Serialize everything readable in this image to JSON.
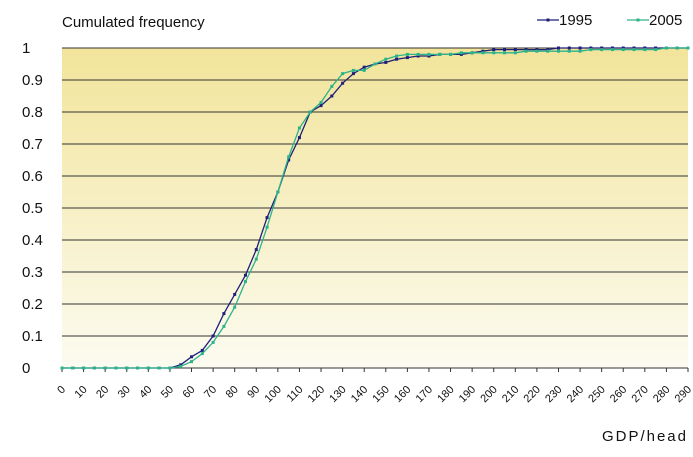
{
  "chart_data": {
    "type": "line",
    "title": "Cumulated frequency",
    "x_label": "GDP/head",
    "x": [
      0,
      5,
      10,
      15,
      20,
      25,
      30,
      35,
      40,
      45,
      50,
      55,
      60,
      65,
      70,
      75,
      80,
      85,
      90,
      95,
      100,
      105,
      110,
      115,
      120,
      125,
      130,
      135,
      140,
      145,
      150,
      155,
      160,
      165,
      170,
      175,
      180,
      185,
      190,
      195,
      200,
      205,
      210,
      215,
      220,
      225,
      230,
      235,
      240,
      245,
      250,
      255,
      260,
      265,
      270,
      275,
      280,
      285,
      290
    ],
    "series": [
      {
        "name": "1995",
        "color": "#1f1f7a",
        "values": [
          0,
          0,
          0,
          0,
          0,
          0,
          0,
          0,
          0,
          0,
          0,
          0.01,
          0.035,
          0.055,
          0.1,
          0.17,
          0.23,
          0.29,
          0.37,
          0.47,
          0.55,
          0.65,
          0.72,
          0.8,
          0.82,
          0.85,
          0.89,
          0.92,
          0.94,
          0.95,
          0.955,
          0.965,
          0.97,
          0.975,
          0.975,
          0.98,
          0.98,
          0.98,
          0.985,
          0.99,
          0.995,
          0.995,
          0.995,
          0.995,
          0.995,
          0.995,
          1,
          1,
          1,
          1,
          1,
          1,
          1,
          1,
          1,
          1,
          1,
          1,
          1
        ]
      },
      {
        "name": "2005",
        "color": "#2db38a",
        "values": [
          0,
          0,
          0,
          0,
          0,
          0,
          0,
          0,
          0,
          0,
          0,
          0.005,
          0.02,
          0.045,
          0.08,
          0.13,
          0.19,
          0.27,
          0.34,
          0.44,
          0.55,
          0.66,
          0.75,
          0.8,
          0.83,
          0.88,
          0.92,
          0.93,
          0.93,
          0.95,
          0.965,
          0.975,
          0.98,
          0.98,
          0.98,
          0.98,
          0.98,
          0.985,
          0.985,
          0.985,
          0.985,
          0.985,
          0.985,
          0.99,
          0.99,
          0.99,
          0.99,
          0.99,
          0.99,
          0.995,
          0.995,
          0.995,
          0.995,
          0.995,
          0.995,
          0.995,
          1,
          1,
          1
        ]
      }
    ],
    "xlim": [
      0,
      290
    ],
    "xticks": [
      0,
      10,
      20,
      30,
      40,
      50,
      60,
      70,
      80,
      90,
      100,
      110,
      120,
      130,
      140,
      150,
      160,
      170,
      180,
      190,
      200,
      210,
      220,
      230,
      240,
      250,
      260,
      270,
      280,
      290
    ],
    "ylim": [
      0,
      1
    ],
    "yticks": [
      0,
      0.1,
      0.2,
      0.3,
      0.4,
      0.5,
      0.6,
      0.7,
      0.8,
      0.9,
      1
    ],
    "grid": true,
    "legend": "top-right"
  }
}
